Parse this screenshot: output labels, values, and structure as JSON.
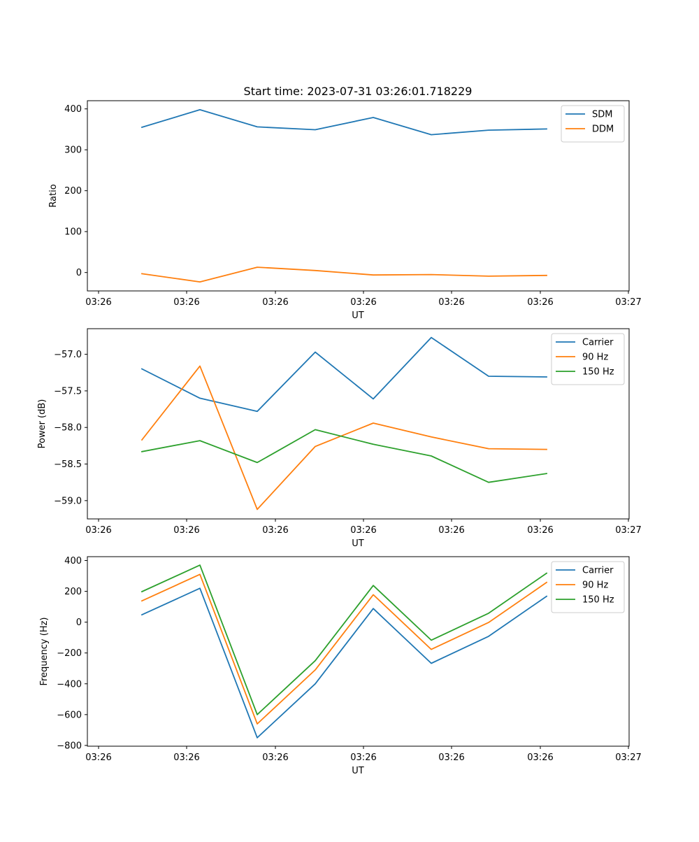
{
  "figure": {
    "title": "Start time: 2023-07-31 03:26:01.718229"
  },
  "colors": {
    "blue": "#1f77b4",
    "orange": "#ff7f0e",
    "green": "#2ca02c"
  },
  "chart_data": [
    {
      "type": "line",
      "title": "Start time: 2023-07-31 03:26:01.718229",
      "xlabel": "UT",
      "ylabel": "Ratio",
      "x_tick_labels": [
        "03:26",
        "03:26",
        "03:26",
        "03:26",
        "03:26",
        "03:26",
        "03:27"
      ],
      "y_ticks": [
        0,
        100,
        200,
        300,
        400
      ],
      "y_tick_labels": [
        "0",
        "100",
        "200",
        "300",
        "400"
      ],
      "ylim": [
        -45,
        420
      ],
      "legend_position": "top-right",
      "series": [
        {
          "name": "SDM",
          "color": "#1f77b4",
          "values": [
            355,
            398,
            356,
            349,
            379,
            337,
            348,
            351
          ]
        },
        {
          "name": "DDM",
          "color": "#ff7f0e",
          "values": [
            -3,
            -23,
            13,
            5,
            -6,
            -5,
            -9,
            -7
          ]
        }
      ]
    },
    {
      "type": "line",
      "title": "",
      "xlabel": "UT",
      "ylabel": "Power (dB)",
      "x_tick_labels": [
        "03:26",
        "03:26",
        "03:26",
        "03:26",
        "03:26",
        "03:26",
        "03:27"
      ],
      "y_ticks": [
        -57.0,
        -57.5,
        -58.0,
        -58.5,
        -59.0
      ],
      "y_tick_labels": [
        "−57.0",
        "−57.5",
        "−58.0",
        "−58.5",
        "−59.0"
      ],
      "ylim": [
        -59.25,
        -56.65
      ],
      "legend_position": "top-right",
      "series": [
        {
          "name": "Carrier",
          "color": "#1f77b4",
          "values": [
            -57.2,
            -57.6,
            -57.78,
            -56.97,
            -57.61,
            -56.77,
            -57.3,
            -57.31
          ]
        },
        {
          "name": "90 Hz",
          "color": "#ff7f0e",
          "values": [
            -58.17,
            -57.16,
            -59.12,
            -58.26,
            -57.94,
            -58.13,
            -58.29,
            -58.3
          ]
        },
        {
          "name": "150 Hz",
          "color": "#2ca02c",
          "values": [
            -58.33,
            -58.18,
            -58.48,
            -58.03,
            -58.23,
            -58.39,
            -58.75,
            -58.63
          ]
        }
      ]
    },
    {
      "type": "line",
      "title": "",
      "xlabel": "UT",
      "ylabel": "Frequency (Hz)",
      "x_tick_labels": [
        "03:26",
        "03:26",
        "03:26",
        "03:26",
        "03:26",
        "03:26",
        "03:27"
      ],
      "y_ticks": [
        400,
        200,
        0,
        -200,
        -400,
        -600,
        -800
      ],
      "y_tick_labels": [
        "400",
        "200",
        "0",
        "−200",
        "−400",
        "−600",
        "−800"
      ],
      "ylim": [
        -805,
        425
      ],
      "legend_position": "top-right",
      "series": [
        {
          "name": "Carrier",
          "color": "#1f77b4",
          "values": [
            48,
            220,
            -750,
            -400,
            88,
            -267,
            -92,
            168
          ]
        },
        {
          "name": "90 Hz",
          "color": "#ff7f0e",
          "values": [
            138,
            310,
            -660,
            -310,
            178,
            -177,
            -2,
            258
          ]
        },
        {
          "name": "150 Hz",
          "color": "#2ca02c",
          "values": [
            198,
            370,
            -600,
            -250,
            238,
            -117,
            58,
            318
          ]
        }
      ]
    }
  ]
}
